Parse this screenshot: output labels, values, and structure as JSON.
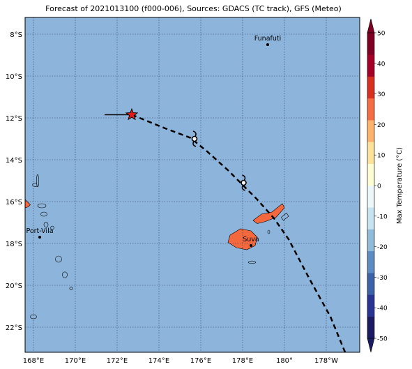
{
  "title": "Forecast of 2021013100 (f000-006), Sources: GDACS (TC track), GFS (Meteo)",
  "map": {
    "lon_range": [
      167.6,
      183.6
    ],
    "lat_range": [
      -23.2,
      -7.2
    ],
    "ocean_color": "#8db5dc",
    "grid_color": "#2f3f6f",
    "lon_ticks": [
      {
        "value": 168,
        "label": "168°E"
      },
      {
        "value": 170,
        "label": "170°E"
      },
      {
        "value": 172,
        "label": "172°E"
      },
      {
        "value": 174,
        "label": "174°E"
      },
      {
        "value": 176,
        "label": "176°E"
      },
      {
        "value": 178,
        "label": "178°E"
      },
      {
        "value": 180,
        "label": "180°"
      },
      {
        "value": 182,
        "label": "178°W"
      }
    ],
    "lat_ticks": [
      {
        "value": -8,
        "label": "8°S"
      },
      {
        "value": -10,
        "label": "10°S"
      },
      {
        "value": -12,
        "label": "12°S"
      },
      {
        "value": -14,
        "label": "14°S"
      },
      {
        "value": -16,
        "label": "16°S"
      },
      {
        "value": -18,
        "label": "18°S"
      },
      {
        "value": -20,
        "label": "20°S"
      },
      {
        "value": -22,
        "label": "22°S"
      }
    ],
    "cities": [
      {
        "name": "Funafuti",
        "lon": 179.2,
        "lat": -8.5
      },
      {
        "name": "Port-Vila",
        "lon": 168.3,
        "lat": -17.7
      },
      {
        "name": "Suva",
        "lon": 178.4,
        "lat": -18.1
      }
    ],
    "track": {
      "past_segment": [
        [
          171.4,
          -11.85
        ],
        [
          172.7,
          -11.85
        ]
      ],
      "current_position": [
        172.7,
        -11.85
      ],
      "forecast_path": [
        [
          172.7,
          -11.85
        ],
        [
          174.3,
          -12.5
        ],
        [
          175.5,
          -12.95
        ],
        [
          176.3,
          -13.6
        ],
        [
          177.3,
          -14.5
        ],
        [
          178.1,
          -15.3
        ],
        [
          178.7,
          -15.9
        ],
        [
          179.5,
          -16.8
        ],
        [
          180.2,
          -17.8
        ],
        [
          181.2,
          -19.7
        ],
        [
          182.2,
          -21.5
        ],
        [
          182.9,
          -23.2
        ]
      ],
      "storm_symbols": [
        [
          175.7,
          -13.0
        ],
        [
          178.05,
          -15.1
        ]
      ],
      "star_color": "#e31a1c"
    },
    "land_color": "#f4683d"
  },
  "colorbar": {
    "label": "Max Temperature (°C)",
    "min": -50,
    "max": 50,
    "ticks": [
      50,
      40,
      30,
      20,
      10,
      0,
      -10,
      -20,
      -30,
      -40,
      -50
    ],
    "colors": [
      "#1b1b63",
      "#283593",
      "#3c62a8",
      "#5b8cc2",
      "#90bcd9",
      "#c6e3ef",
      "#ecf7fb",
      "#fdfdd3",
      "#fee29b",
      "#fdb36b",
      "#f46d43",
      "#d7301f",
      "#a50026",
      "#7f0022"
    ]
  }
}
